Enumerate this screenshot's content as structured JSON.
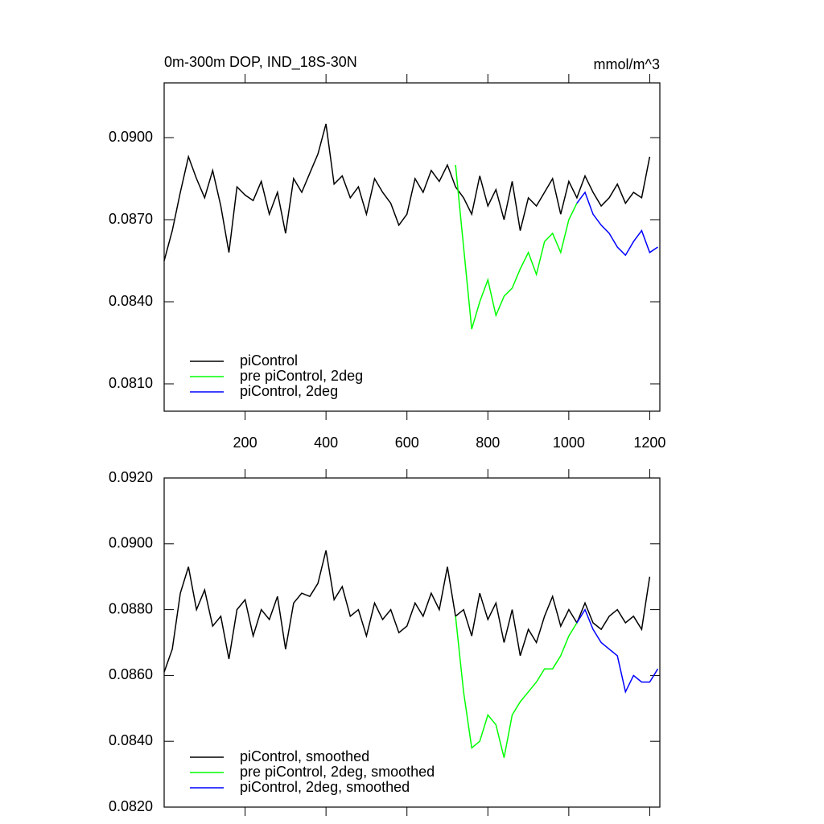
{
  "chart_data": [
    {
      "type": "line",
      "title": "0m-300m DOP, IND_18S-30N",
      "units": "mmol/m^3",
      "x": [
        0,
        20,
        40,
        60,
        80,
        100,
        120,
        140,
        160,
        180,
        200,
        220,
        240,
        260,
        280,
        300,
        320,
        340,
        360,
        380,
        400,
        420,
        440,
        460,
        480,
        500,
        520,
        540,
        560,
        580,
        600,
        620,
        640,
        660,
        680,
        700,
        720,
        740,
        760,
        780,
        800,
        820,
        840,
        860,
        880,
        900,
        920,
        940,
        960,
        980,
        1000,
        1020,
        1040,
        1060,
        1080,
        1100,
        1120,
        1140,
        1160,
        1180,
        1200,
        1220
      ],
      "series": [
        {
          "name": "piControl",
          "color": "#000000",
          "values": [
            0.0855,
            0.0866,
            0.088,
            0.0893,
            0.0885,
            0.0878,
            0.0888,
            0.0875,
            0.0858,
            0.0882,
            0.0879,
            0.0877,
            0.0884,
            0.0872,
            0.088,
            0.0865,
            0.0885,
            0.088,
            0.0887,
            0.0894,
            0.0905,
            0.0883,
            0.0886,
            0.0878,
            0.0882,
            0.0872,
            0.0885,
            0.088,
            0.0876,
            0.0868,
            0.0872,
            0.0885,
            0.088,
            0.0888,
            0.0884,
            0.089,
            0.0882,
            0.0878,
            0.0872,
            0.0886,
            0.0875,
            0.0881,
            0.087,
            0.0884,
            0.0866,
            0.0878,
            0.0875,
            0.088,
            0.0885,
            0.0872,
            0.0884,
            0.0878,
            0.0886,
            0.088,
            0.0875,
            0.0878,
            0.0883,
            0.0876,
            0.088,
            0.0878,
            0.0893,
            null
          ]
        },
        {
          "name": "pre piControl, 2deg",
          "color": "#00ff00",
          "values": [
            null,
            null,
            null,
            null,
            null,
            null,
            null,
            null,
            null,
            null,
            null,
            null,
            null,
            null,
            null,
            null,
            null,
            null,
            null,
            null,
            null,
            null,
            null,
            null,
            null,
            null,
            null,
            null,
            null,
            null,
            null,
            null,
            null,
            null,
            null,
            null,
            0.089,
            0.086,
            0.083,
            0.084,
            0.0848,
            0.0835,
            0.0842,
            0.0845,
            0.0852,
            0.0858,
            0.085,
            0.0862,
            0.0865,
            0.0858,
            0.087,
            0.0876,
            null,
            null,
            null,
            null,
            null,
            null,
            null,
            null,
            null,
            null
          ]
        },
        {
          "name": "piControl, 2deg",
          "color": "#0000ff",
          "values": [
            null,
            null,
            null,
            null,
            null,
            null,
            null,
            null,
            null,
            null,
            null,
            null,
            null,
            null,
            null,
            null,
            null,
            null,
            null,
            null,
            null,
            null,
            null,
            null,
            null,
            null,
            null,
            null,
            null,
            null,
            null,
            null,
            null,
            null,
            null,
            null,
            null,
            null,
            null,
            null,
            null,
            null,
            null,
            null,
            null,
            null,
            null,
            null,
            null,
            null,
            null,
            0.0876,
            0.088,
            0.0872,
            0.0868,
            0.0865,
            0.086,
            0.0857,
            0.0862,
            0.0866,
            0.0858,
            0.086
          ]
        }
      ],
      "xlim": [
        0,
        1225
      ],
      "xticks": [
        200,
        400,
        600,
        800,
        1000,
        1200
      ],
      "xtick_labels": true,
      "ylim": [
        0.08,
        0.092
      ],
      "yticks": [
        {
          "value": 0.081,
          "label": "0.0810"
        },
        {
          "value": 0.084,
          "label": "0.0840"
        },
        {
          "value": 0.087,
          "label": "0.0870"
        },
        {
          "value": 0.09,
          "label": "0.0900"
        }
      ],
      "legend": "lower left"
    },
    {
      "type": "line",
      "x": [
        0,
        20,
        40,
        60,
        80,
        100,
        120,
        140,
        160,
        180,
        200,
        220,
        240,
        260,
        280,
        300,
        320,
        340,
        360,
        380,
        400,
        420,
        440,
        460,
        480,
        500,
        520,
        540,
        560,
        580,
        600,
        620,
        640,
        660,
        680,
        700,
        720,
        740,
        760,
        780,
        800,
        820,
        840,
        860,
        880,
        900,
        920,
        940,
        960,
        980,
        1000,
        1020,
        1040,
        1060,
        1080,
        1100,
        1120,
        1140,
        1160,
        1180,
        1200,
        1220
      ],
      "series": [
        {
          "name": "piControl, smoothed",
          "color": "#000000",
          "values": [
            0.0861,
            0.0868,
            0.0885,
            0.0893,
            0.088,
            0.0886,
            0.0875,
            0.0878,
            0.0865,
            0.088,
            0.0883,
            0.0872,
            0.088,
            0.0877,
            0.0884,
            0.0868,
            0.0882,
            0.0885,
            0.0884,
            0.0888,
            0.0898,
            0.0883,
            0.0887,
            0.0878,
            0.088,
            0.0872,
            0.0882,
            0.0877,
            0.088,
            0.0873,
            0.0875,
            0.0882,
            0.0878,
            0.0885,
            0.088,
            0.0893,
            0.0878,
            0.088,
            0.0872,
            0.0885,
            0.0877,
            0.0882,
            0.087,
            0.088,
            0.0866,
            0.0874,
            0.087,
            0.0878,
            0.0884,
            0.0875,
            0.088,
            0.0876,
            0.0882,
            0.0876,
            0.0874,
            0.0878,
            0.088,
            0.0876,
            0.0878,
            0.0874,
            0.089,
            null
          ]
        },
        {
          "name": "pre piControl, 2deg, smoothed",
          "color": "#00ff00",
          "values": [
            null,
            null,
            null,
            null,
            null,
            null,
            null,
            null,
            null,
            null,
            null,
            null,
            null,
            null,
            null,
            null,
            null,
            null,
            null,
            null,
            null,
            null,
            null,
            null,
            null,
            null,
            null,
            null,
            null,
            null,
            null,
            null,
            null,
            null,
            null,
            null,
            0.0878,
            0.0855,
            0.0838,
            0.084,
            0.0848,
            0.0845,
            0.0835,
            0.0848,
            0.0852,
            0.0855,
            0.0858,
            0.0862,
            0.0862,
            0.0866,
            0.0872,
            0.0876,
            null,
            null,
            null,
            null,
            null,
            null,
            null,
            null,
            null,
            null
          ]
        },
        {
          "name": "piControl, 2deg, smoothed",
          "color": "#0000ff",
          "values": [
            null,
            null,
            null,
            null,
            null,
            null,
            null,
            null,
            null,
            null,
            null,
            null,
            null,
            null,
            null,
            null,
            null,
            null,
            null,
            null,
            null,
            null,
            null,
            null,
            null,
            null,
            null,
            null,
            null,
            null,
            null,
            null,
            null,
            null,
            null,
            null,
            null,
            null,
            null,
            null,
            null,
            null,
            null,
            null,
            null,
            null,
            null,
            null,
            null,
            null,
            null,
            0.0876,
            0.088,
            0.0874,
            0.087,
            0.0868,
            0.0866,
            0.0855,
            0.086,
            0.0858,
            0.0858,
            0.0862
          ]
        }
      ],
      "xlim": [
        0,
        1225
      ],
      "xticks": [
        200,
        400,
        600,
        800,
        1000,
        1200
      ],
      "xtick_labels": false,
      "ylim": [
        0.082,
        0.092
      ],
      "yticks": [
        {
          "value": 0.082,
          "label": "0.0820"
        },
        {
          "value": 0.084,
          "label": "0.0840"
        },
        {
          "value": 0.086,
          "label": "0.0860"
        },
        {
          "value": 0.088,
          "label": "0.0880"
        },
        {
          "value": 0.09,
          "label": "0.0900"
        },
        {
          "value": 0.092,
          "label": "0.0920"
        }
      ],
      "legend": "lower left"
    }
  ]
}
